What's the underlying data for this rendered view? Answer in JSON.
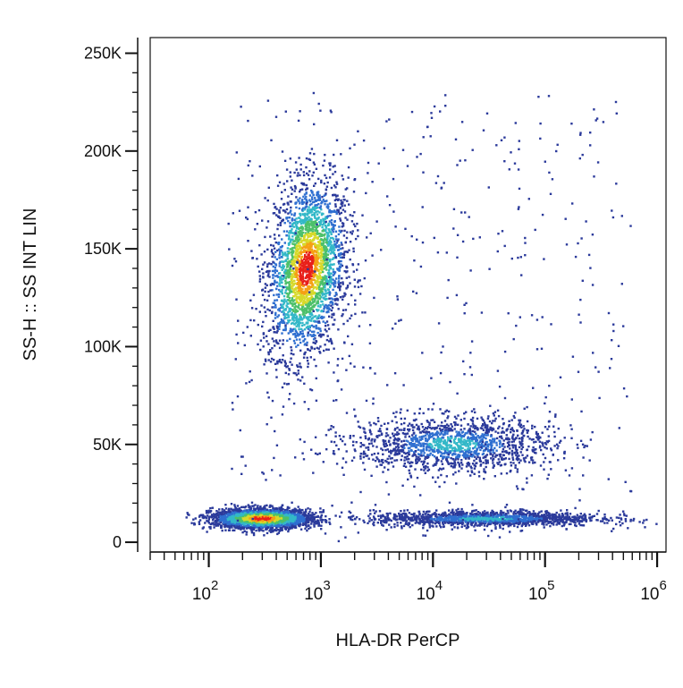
{
  "chart_data": {
    "type": "scatter",
    "subtype": "flow-cytometry density dot plot",
    "xlabel": "HLA-DR PerCP",
    "ylabel": "SS-H :: SS INT LIN",
    "x_scale": "log",
    "xlim": [
      30,
      1200000
    ],
    "ylim": [
      -5000,
      258000
    ],
    "x_ticks": [
      {
        "value": 100,
        "base": "10",
        "exp": "2"
      },
      {
        "value": 1000,
        "base": "10",
        "exp": "3"
      },
      {
        "value": 10000,
        "base": "10",
        "exp": "4"
      },
      {
        "value": 100000,
        "base": "10",
        "exp": "5"
      },
      {
        "value": 1000000,
        "base": "10",
        "exp": "6"
      }
    ],
    "y_ticks": [
      {
        "value": 0,
        "label": "0"
      },
      {
        "value": 50000,
        "label": "50K"
      },
      {
        "value": 100000,
        "label": "100K"
      },
      {
        "value": 150000,
        "label": "150K"
      },
      {
        "value": 200000,
        "label": "200K"
      },
      {
        "value": 250000,
        "label": "250K"
      }
    ],
    "grid": false,
    "color_scale": [
      "#2b3a9b",
      "#2f6fd0",
      "#33b8c8",
      "#4cc06a",
      "#d6d92a",
      "#f5a014",
      "#e8201a"
    ],
    "populations": [
      {
        "x_center": 750,
        "y_center": 140000,
        "x_spread_decades": 0.17,
        "y_spread": 45000,
        "tilt": 0.35,
        "density": "high"
      },
      {
        "x_center": 300,
        "y_center": 12000,
        "x_spread_decades": 0.22,
        "y_spread": 5000,
        "density": "high"
      },
      {
        "x_center": 15000,
        "y_center": 50000,
        "x_spread_decades": 0.45,
        "y_spread": 14000,
        "density": "medium"
      },
      {
        "x_center": 30000,
        "y_center": 12000,
        "x_spread_decades": 0.5,
        "y_spread": 4000,
        "density": "medium"
      }
    ]
  }
}
